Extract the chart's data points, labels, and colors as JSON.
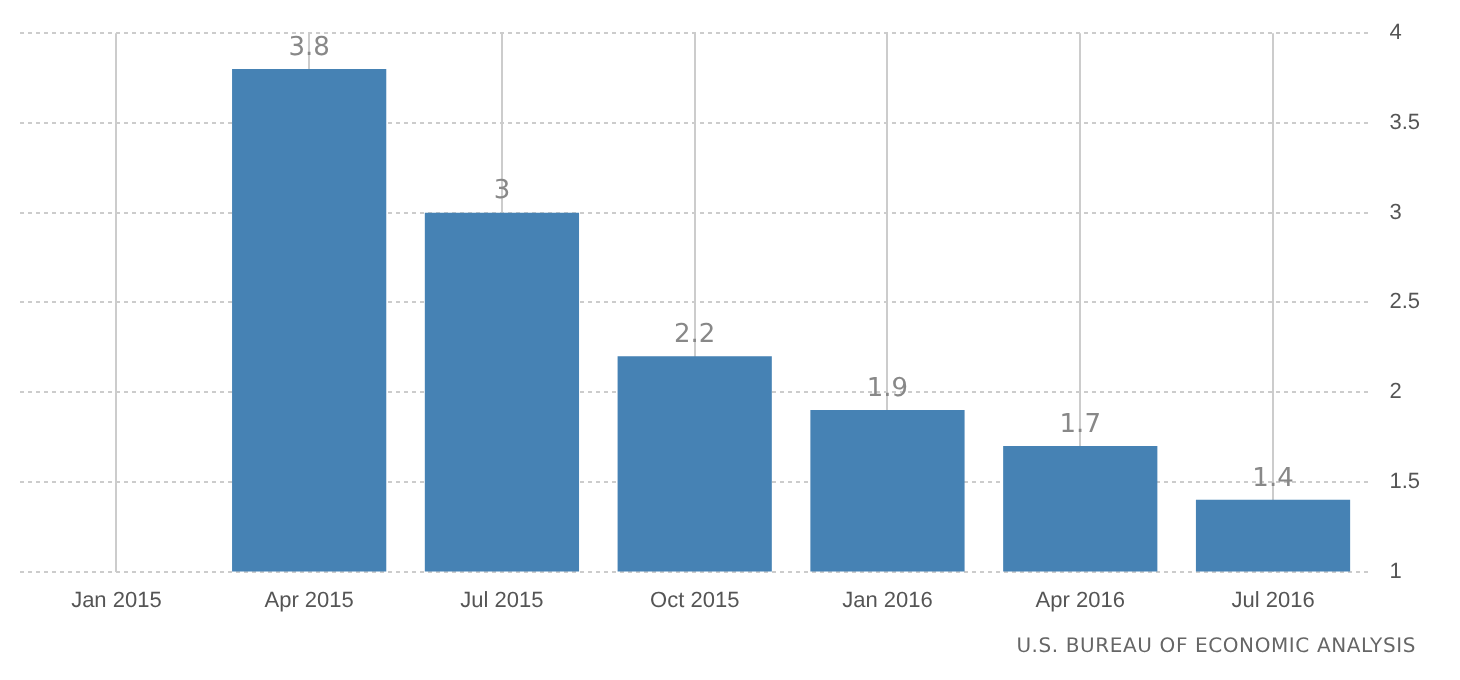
{
  "chart_data": {
    "type": "bar",
    "categories": [
      "Jan 2015",
      "Apr 2015",
      "Jul 2015",
      "Oct 2015",
      "Jan 2016",
      "Apr 2016",
      "Jul 2016"
    ],
    "values": [
      null,
      3.8,
      3,
      2.2,
      1.9,
      1.7,
      1.4
    ],
    "color": "#4682b4",
    "ylim": [
      1,
      4
    ],
    "yticks": [
      1,
      1.5,
      2,
      2.5,
      3,
      3.5,
      4
    ],
    "grid": true,
    "data_labels": true,
    "annotations": [
      "U.S. BUREAU OF ECONOMIC ANALYSIS"
    ]
  }
}
